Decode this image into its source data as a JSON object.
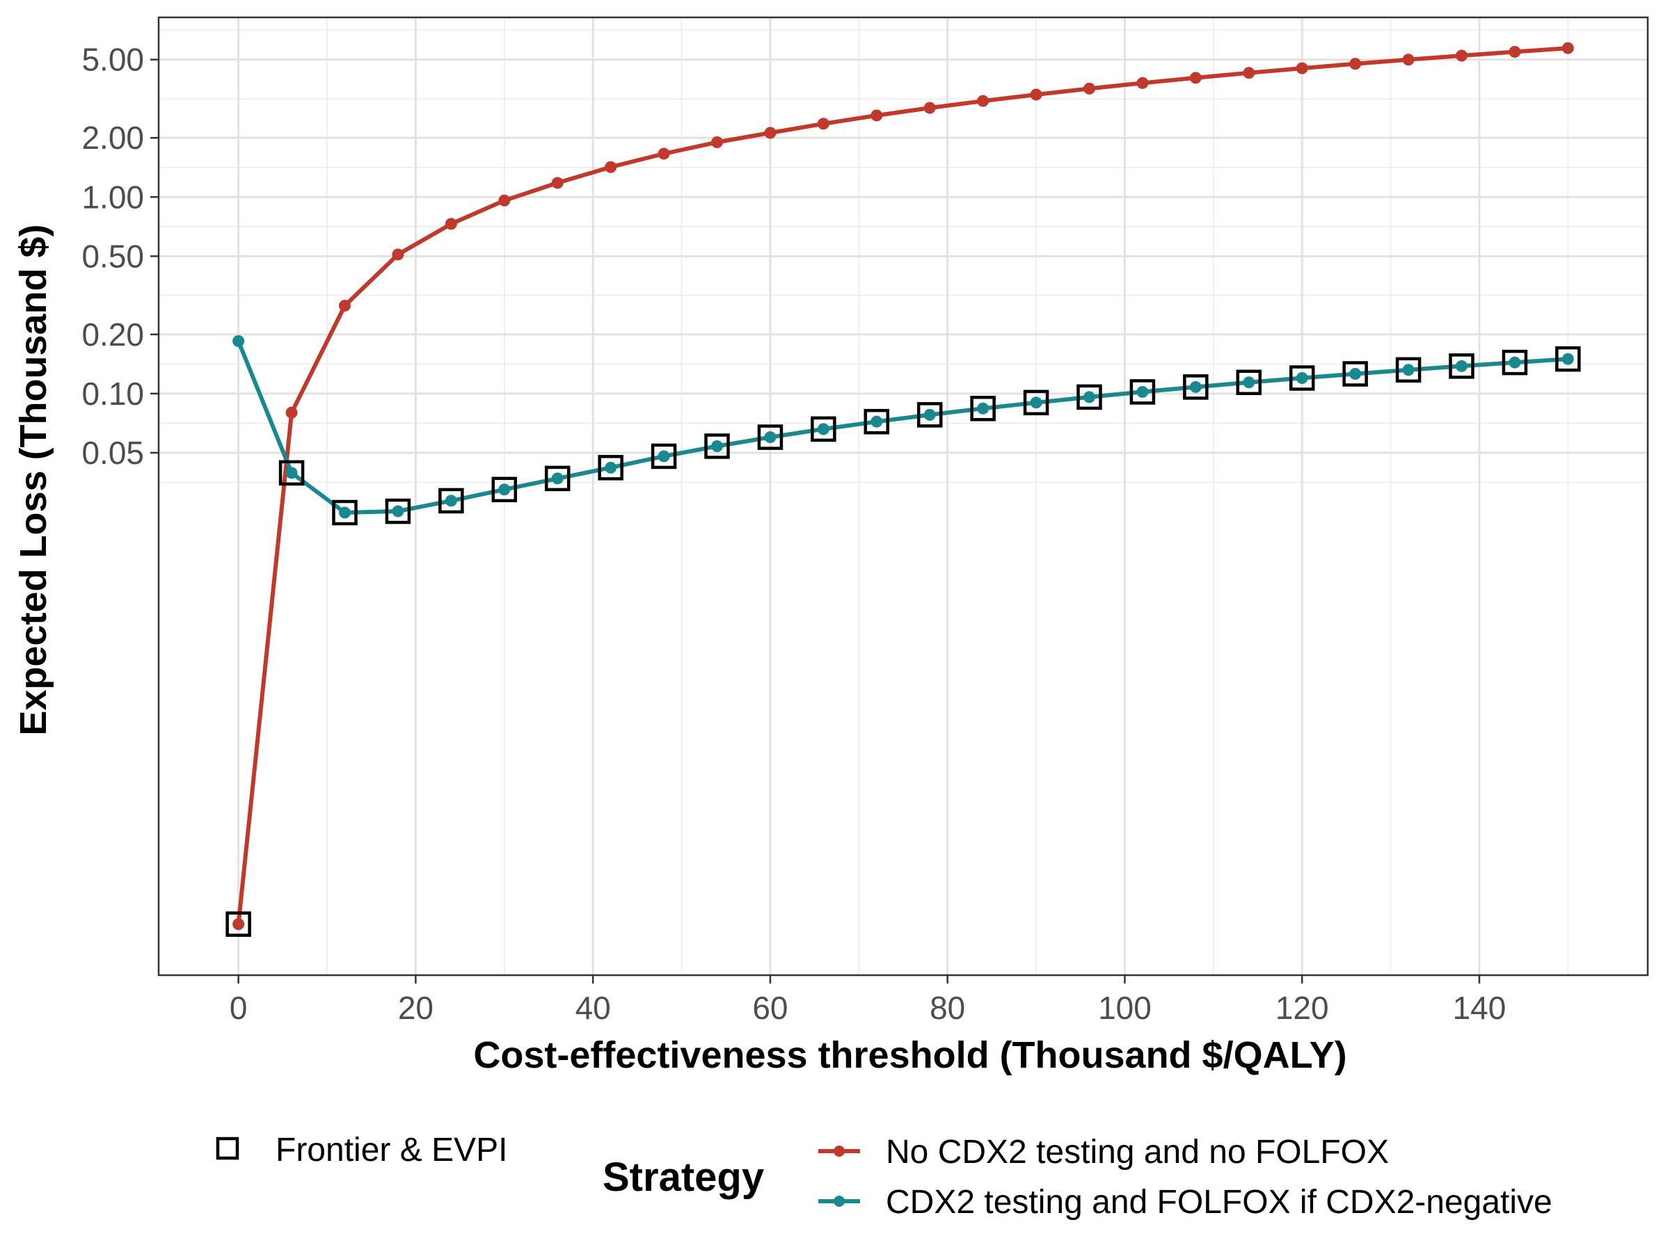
{
  "chart_data": {
    "type": "line",
    "title": "",
    "xlabel": "Cost-effectiveness threshold (Thousand $/QALY)",
    "ylabel": "Expected Loss (Thousand $)",
    "x_scale": "linear",
    "y_scale": "log",
    "xlim": [
      -9,
      159
    ],
    "ylim": [
      0.00011,
      8.2
    ],
    "x_ticks": [
      0,
      20,
      40,
      60,
      80,
      100,
      120,
      140
    ],
    "x_tick_labels": [
      "0",
      "20",
      "40",
      "60",
      "80",
      "100",
      "120",
      "140"
    ],
    "y_ticks": [
      0.05,
      0.1,
      0.2,
      0.5,
      1,
      2,
      5
    ],
    "y_tick_labels": [
      "0.05",
      "0.10",
      "0.20",
      "0.50",
      "1.00",
      "2.00",
      "5.00"
    ],
    "grid": true,
    "legend_position": "bottom",
    "legend_title": "Strategy",
    "x": [
      0,
      6,
      12,
      18,
      24,
      30,
      36,
      42,
      48,
      54,
      60,
      66,
      72,
      78,
      84,
      90,
      96,
      102,
      108,
      114,
      120,
      126,
      132,
      138,
      144,
      150
    ],
    "series": [
      {
        "name": "No CDX2 testing and no FOLFOX",
        "color": "#c0392b",
        "values": [
          0.0002,
          0.08,
          0.28,
          0.51,
          0.73,
          0.96,
          1.18,
          1.42,
          1.66,
          1.9,
          2.12,
          2.36,
          2.6,
          2.84,
          3.08,
          3.32,
          3.56,
          3.8,
          4.04,
          4.28,
          4.52,
          4.76,
          5.0,
          5.24,
          5.48,
          5.72
        ]
      },
      {
        "name": "CDX2 testing and FOLFOX if CDX2-negative",
        "color": "#19898f",
        "values": [
          0.185,
          0.0395,
          0.0248,
          0.0252,
          0.0285,
          0.0325,
          0.037,
          0.042,
          0.048,
          0.054,
          0.06,
          0.066,
          0.072,
          0.078,
          0.084,
          0.09,
          0.096,
          0.102,
          0.108,
          0.114,
          0.12,
          0.126,
          0.132,
          0.138,
          0.144,
          0.15
        ]
      }
    ],
    "frontier": {
      "name": "Frontier & EVPI",
      "x": [
        0,
        6,
        12,
        18,
        24,
        30,
        36,
        42,
        48,
        54,
        60,
        66,
        72,
        78,
        84,
        90,
        96,
        102,
        108,
        114,
        120,
        126,
        132,
        138,
        144,
        150
      ],
      "values": [
        0.0002,
        0.0395,
        0.0248,
        0.0252,
        0.0285,
        0.0325,
        0.037,
        0.042,
        0.048,
        0.054,
        0.06,
        0.066,
        0.072,
        0.078,
        0.084,
        0.09,
        0.096,
        0.102,
        0.108,
        0.114,
        0.12,
        0.126,
        0.132,
        0.138,
        0.144,
        0.15
      ]
    }
  }
}
